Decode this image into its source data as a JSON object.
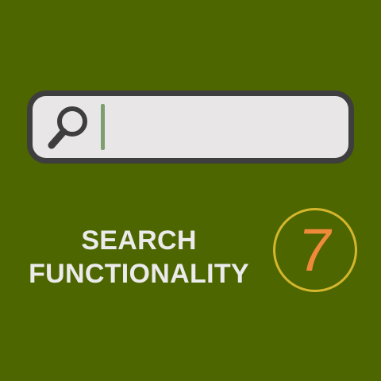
{
  "search": {
    "value": "",
    "icon": "search-icon"
  },
  "caption": {
    "line1": "SEARCH",
    "line2": "FUNCTIONALITY"
  },
  "badge": {
    "number": "7"
  },
  "colors": {
    "background": "#4e6600",
    "search_border": "#3e3e3e",
    "search_fill": "#e9e6e7",
    "caret": "#7d9e6f",
    "caption_text": "#ebebeb",
    "badge_ring": "#d4b62c",
    "badge_number": "#f08a3a"
  }
}
